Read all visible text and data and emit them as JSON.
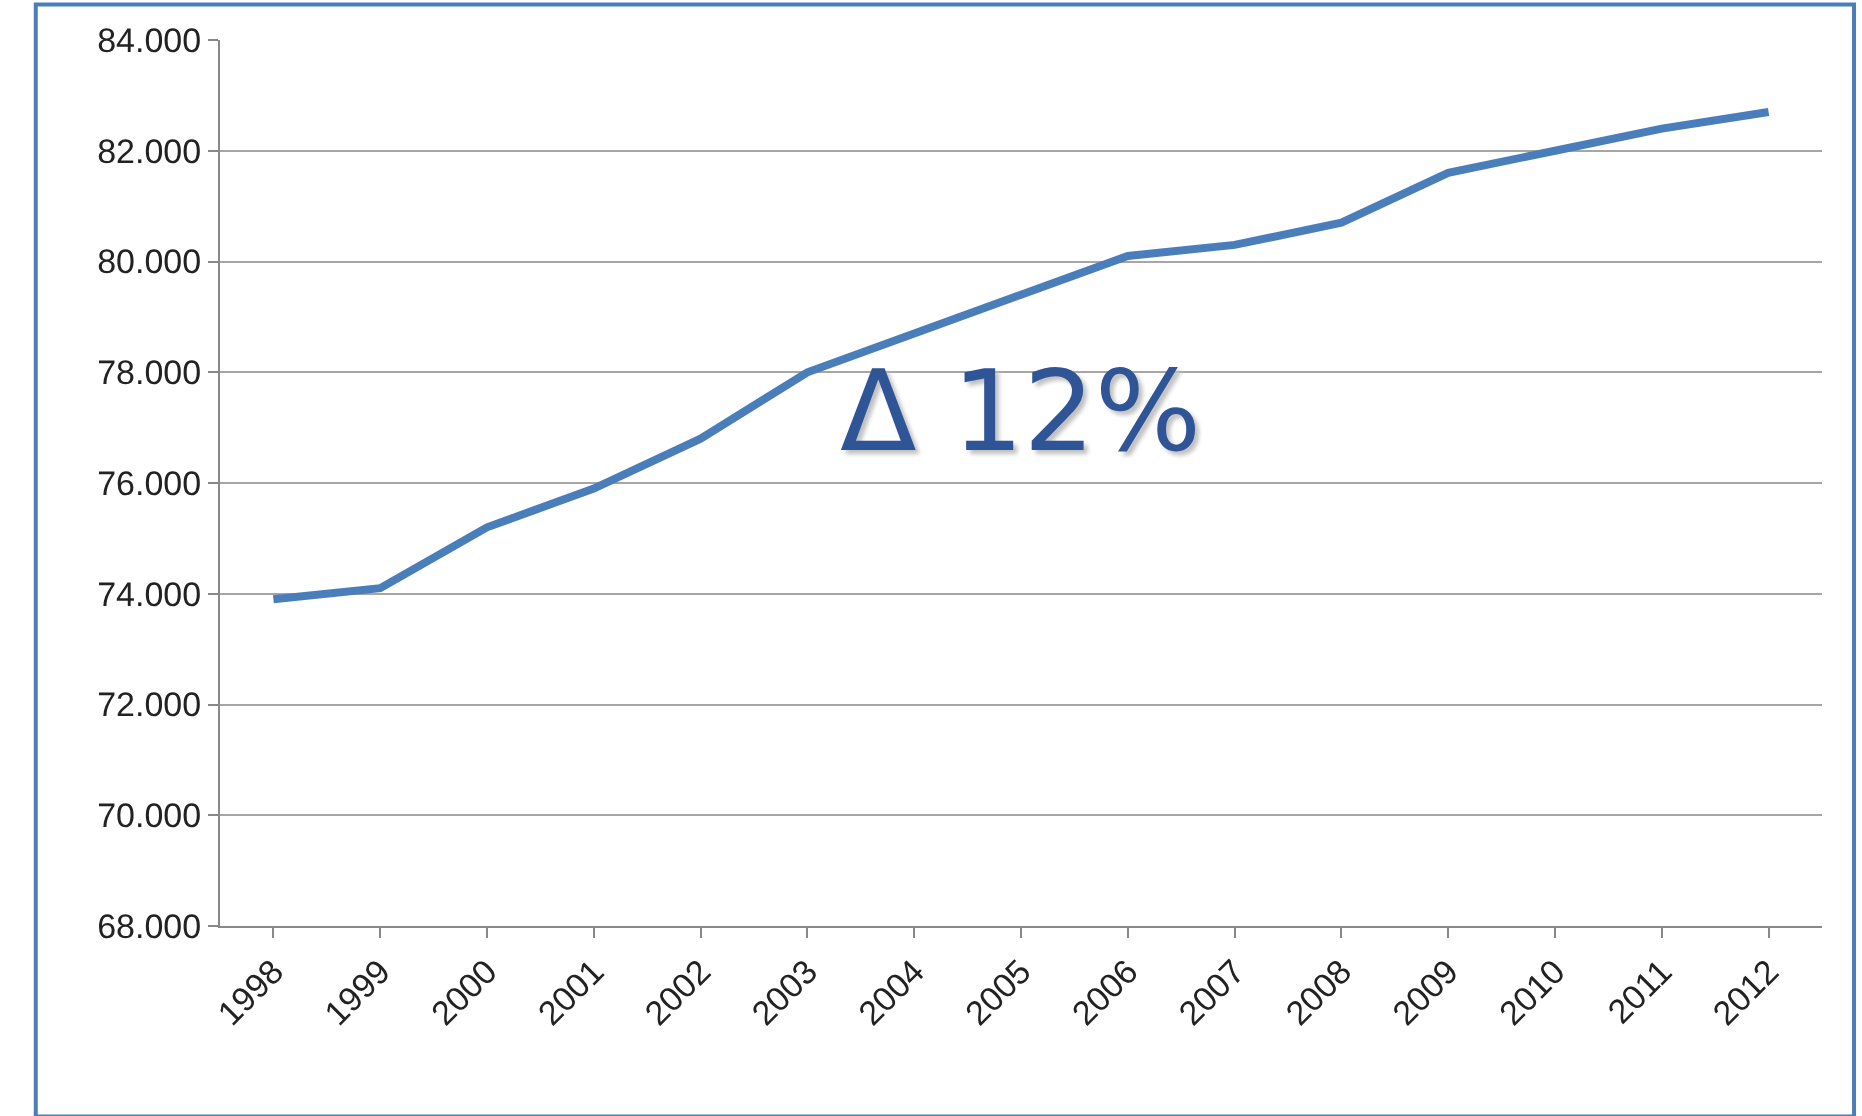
{
  "chart_data": {
    "type": "line",
    "categories": [
      "1998",
      "1999",
      "2000",
      "2001",
      "2002",
      "2003",
      "2004",
      "2005",
      "2006",
      "2007",
      "2008",
      "2009",
      "2010",
      "2011",
      "2012"
    ],
    "series": [
      {
        "color": "#4a7ebb",
        "values": [
          73900,
          74100,
          75200,
          75900,
          76800,
          78000,
          78700,
          79400,
          80100,
          80300,
          80700,
          81600,
          82000,
          82400,
          82700
        ]
      }
    ],
    "ylim": [
      68000,
      84000
    ],
    "yticks": [
      {
        "value": 68000,
        "label": "68.000"
      },
      {
        "value": 70000,
        "label": "70.000"
      },
      {
        "value": 72000,
        "label": "72.000"
      },
      {
        "value": 74000,
        "label": "74.000"
      },
      {
        "value": 76000,
        "label": "76.000"
      },
      {
        "value": 78000,
        "label": "78.000"
      },
      {
        "value": 80000,
        "label": "80.000"
      },
      {
        "value": 82000,
        "label": "82.000"
      },
      {
        "value": 84000,
        "label": "84.000"
      }
    ],
    "grid": "y",
    "marker": "none",
    "line_style": "solid",
    "annotations": [
      "Δ 12%"
    ]
  }
}
